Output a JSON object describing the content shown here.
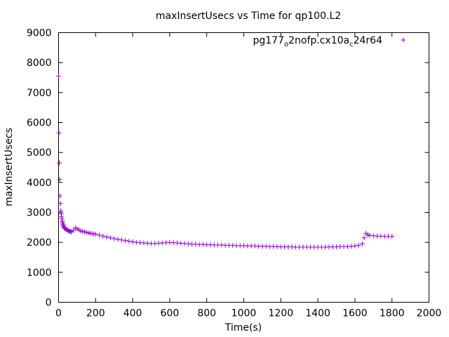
{
  "chart_data": {
    "type": "scatter",
    "title": "maxInsertUsecs vs Time for qp100.L2",
    "xlabel": "Time(s)",
    "ylabel": "maxInsertUsecs",
    "xlim": [
      0,
      2000
    ],
    "ylim": [
      0,
      9000
    ],
    "xticks": [
      0,
      200,
      400,
      600,
      800,
      1000,
      1200,
      1400,
      1600,
      1800,
      2000
    ],
    "yticks": [
      0,
      1000,
      2000,
      3000,
      4000,
      5000,
      6000,
      7000,
      8000,
      9000
    ],
    "grid": false,
    "legend_position": "top-right",
    "marker": "+",
    "series": [
      {
        "name_parts": [
          "pg177",
          "o",
          "2nofp.cx10a",
          "c",
          "24r64"
        ],
        "color": "#9400d3",
        "points": [
          [
            0,
            7550
          ],
          [
            2,
            5650
          ],
          [
            4,
            4650
          ],
          [
            6,
            4100
          ],
          [
            8,
            3550
          ],
          [
            10,
            3300
          ],
          [
            12,
            3050
          ],
          [
            14,
            2950
          ],
          [
            16,
            2850
          ],
          [
            18,
            2780
          ],
          [
            20,
            2700
          ],
          [
            22,
            2650
          ],
          [
            24,
            2600
          ],
          [
            26,
            2560
          ],
          [
            28,
            2520
          ],
          [
            30,
            2490
          ],
          [
            35,
            2460
          ],
          [
            40,
            2440
          ],
          [
            45,
            2420
          ],
          [
            50,
            2400
          ],
          [
            55,
            2380
          ],
          [
            60,
            2370
          ],
          [
            65,
            2360
          ],
          [
            70,
            2350
          ],
          [
            80,
            2400
          ],
          [
            90,
            2480
          ],
          [
            100,
            2450
          ],
          [
            110,
            2420
          ],
          [
            120,
            2380
          ],
          [
            130,
            2360
          ],
          [
            140,
            2350
          ],
          [
            150,
            2330
          ],
          [
            160,
            2320
          ],
          [
            170,
            2300
          ],
          [
            180,
            2290
          ],
          [
            190,
            2280
          ],
          [
            200,
            2270
          ],
          [
            220,
            2240
          ],
          [
            240,
            2210
          ],
          [
            260,
            2180
          ],
          [
            280,
            2150
          ],
          [
            300,
            2120
          ],
          [
            320,
            2100
          ],
          [
            340,
            2080
          ],
          [
            360,
            2060
          ],
          [
            380,
            2040
          ],
          [
            400,
            2020
          ],
          [
            420,
            2000
          ],
          [
            440,
            1990
          ],
          [
            460,
            1980
          ],
          [
            480,
            1970
          ],
          [
            500,
            1960
          ],
          [
            520,
            1960
          ],
          [
            540,
            1970
          ],
          [
            560,
            1980
          ],
          [
            580,
            1990
          ],
          [
            600,
            2000
          ],
          [
            620,
            1990
          ],
          [
            640,
            1980
          ],
          [
            660,
            1970
          ],
          [
            680,
            1960
          ],
          [
            700,
            1950
          ],
          [
            720,
            1940
          ],
          [
            740,
            1940
          ],
          [
            760,
            1930
          ],
          [
            780,
            1930
          ],
          [
            800,
            1920
          ],
          [
            820,
            1920
          ],
          [
            840,
            1910
          ],
          [
            860,
            1910
          ],
          [
            880,
            1910
          ],
          [
            900,
            1900
          ],
          [
            920,
            1900
          ],
          [
            940,
            1900
          ],
          [
            960,
            1890
          ],
          [
            980,
            1890
          ],
          [
            1000,
            1890
          ],
          [
            1020,
            1880
          ],
          [
            1040,
            1880
          ],
          [
            1060,
            1880
          ],
          [
            1080,
            1870
          ],
          [
            1100,
            1870
          ],
          [
            1120,
            1870
          ],
          [
            1140,
            1860
          ],
          [
            1160,
            1860
          ],
          [
            1180,
            1860
          ],
          [
            1200,
            1850
          ],
          [
            1220,
            1850
          ],
          [
            1240,
            1850
          ],
          [
            1260,
            1850
          ],
          [
            1280,
            1840
          ],
          [
            1300,
            1840
          ],
          [
            1320,
            1840
          ],
          [
            1340,
            1840
          ],
          [
            1360,
            1840
          ],
          [
            1380,
            1840
          ],
          [
            1400,
            1840
          ],
          [
            1420,
            1840
          ],
          [
            1440,
            1840
          ],
          [
            1460,
            1850
          ],
          [
            1480,
            1850
          ],
          [
            1500,
            1850
          ],
          [
            1520,
            1860
          ],
          [
            1540,
            1860
          ],
          [
            1560,
            1860
          ],
          [
            1580,
            1870
          ],
          [
            1600,
            1880
          ],
          [
            1620,
            1900
          ],
          [
            1640,
            1950
          ],
          [
            1650,
            2150
          ],
          [
            1660,
            2300
          ],
          [
            1670,
            2250
          ],
          [
            1680,
            2230
          ],
          [
            1700,
            2220
          ],
          [
            1720,
            2210
          ],
          [
            1740,
            2210
          ],
          [
            1760,
            2200
          ],
          [
            1780,
            2200
          ],
          [
            1800,
            2200
          ]
        ]
      }
    ]
  }
}
